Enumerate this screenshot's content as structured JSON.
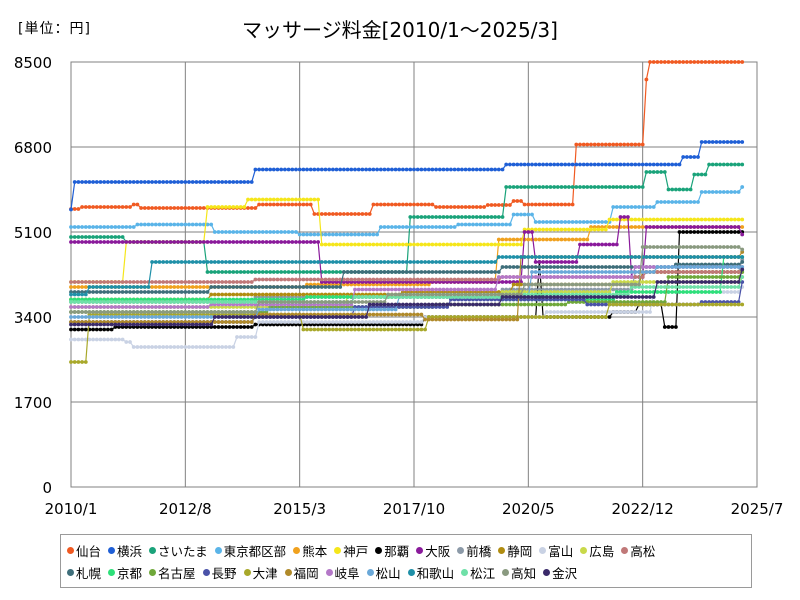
{
  "unit_label": "[単位：円]",
  "chart_data": {
    "type": "line",
    "title": "マッサージ料金[2010/1～2025/3]",
    "xlabel": "",
    "ylabel": "",
    "x_range": [
      "2010/1",
      "2025/7"
    ],
    "ylim": [
      0,
      8500
    ],
    "y_ticks": [
      "0",
      "1700",
      "3400",
      "5100",
      "6800",
      "8500"
    ],
    "x_ticks": [
      "2010/1",
      "2012/8",
      "2015/3",
      "2017/10",
      "2020/5",
      "2022/12",
      "2025/7"
    ],
    "grid": true,
    "legend_position": "bottom",
    "series": [
      {
        "name": "仙台",
        "color": "#f05a22",
        "points": [
          [
            "2010/1",
            5560
          ],
          [
            "2010/4",
            5600
          ],
          [
            "2011/6",
            5650
          ],
          [
            "2011/8",
            5580
          ],
          [
            "2014/4",
            5650
          ],
          [
            "2015/7",
            5460
          ],
          [
            "2016/11",
            5650
          ],
          [
            "2018/4",
            5600
          ],
          [
            "2019/6",
            5640
          ],
          [
            "2020/1",
            5720
          ],
          [
            "2020/4",
            5650
          ],
          [
            "2021/6",
            6850
          ],
          [
            "2022/12",
            6850
          ],
          [
            "2023/1",
            8150
          ],
          [
            "2023/2",
            8500
          ],
          [
            "2025/3",
            8500
          ]
        ]
      },
      {
        "name": "横浜",
        "color": "#1f5fd6",
        "points": [
          [
            "2010/1",
            5550
          ],
          [
            "2010/2",
            6100
          ],
          [
            "2014/2",
            6100
          ],
          [
            "2014/3",
            6350
          ],
          [
            "2019/10",
            6350
          ],
          [
            "2019/11",
            6450
          ],
          [
            "2023/9",
            6450
          ],
          [
            "2023/11",
            6600
          ],
          [
            "2024/4",
            6900
          ],
          [
            "2025/3",
            6900
          ]
        ]
      },
      {
        "name": "さいたま",
        "color": "#1aa37a",
        "points": [
          [
            "2010/1",
            5000
          ],
          [
            "2011/3",
            5000
          ],
          [
            "2011/4",
            4900
          ],
          [
            "2012/11",
            4900
          ],
          [
            "2013/2",
            4300
          ],
          [
            "2017/8",
            4300
          ],
          [
            "2017/9",
            5400
          ],
          [
            "2019/10",
            5400
          ],
          [
            "2019/11",
            6000
          ],
          [
            "2022/12",
            6000
          ],
          [
            "2023/1",
            6300
          ],
          [
            "2023/7",
            5950
          ],
          [
            "2024/2",
            6250
          ],
          [
            "2024/6",
            6450
          ],
          [
            "2025/3",
            6450
          ]
        ]
      },
      {
        "name": "東京都区部",
        "color": "#5ab4e8",
        "points": [
          [
            "2010/1",
            5200
          ],
          [
            "2011/5",
            5200
          ],
          [
            "2011/7",
            5250
          ],
          [
            "2013/4",
            5100
          ],
          [
            "2015/3",
            5050
          ],
          [
            "2017/1",
            5200
          ],
          [
            "2018/10",
            5250
          ],
          [
            "2020/1",
            5450
          ],
          [
            "2020/7",
            5300
          ],
          [
            "2022/4",
            5600
          ],
          [
            "2023/4",
            5700
          ],
          [
            "2024/4",
            5900
          ],
          [
            "2025/3",
            6000
          ]
        ]
      },
      {
        "name": "熊本",
        "color": "#f0a11e",
        "points": [
          [
            "2010/1",
            4000
          ],
          [
            "2014/4",
            4000
          ],
          [
            "2015/5",
            4050
          ],
          [
            "2018/3",
            4100
          ],
          [
            "2019/9",
            4950
          ],
          [
            "2021/10",
            5200
          ],
          [
            "2025/3",
            5200
          ]
        ]
      },
      {
        "name": "神戸",
        "color": "#f5e61a",
        "points": [
          [
            "2010/1",
            4100
          ],
          [
            "2011/2",
            4100
          ],
          [
            "2011/4",
            4900
          ],
          [
            "2013/2",
            5600
          ],
          [
            "2014/1",
            5750
          ],
          [
            "2015/7",
            5750
          ],
          [
            "2015/9",
            4850
          ],
          [
            "2019/9",
            4850
          ],
          [
            "2020/4",
            5150
          ],
          [
            "2022/3",
            5350
          ],
          [
            "2025/3",
            5350
          ]
        ]
      },
      {
        "name": "那覇",
        "color": "#000000",
        "points": [
          [
            "2010/1",
            3150
          ],
          [
            "2011/1",
            3200
          ],
          [
            "2014/3",
            3250
          ],
          [
            "2018/1",
            3400
          ],
          [
            "2020/7",
            3400
          ],
          [
            "2020/8",
            4500
          ],
          [
            "2020/9",
            3400
          ],
          [
            "2022/4",
            3500
          ],
          [
            "2022/11",
            3650
          ],
          [
            "2023/6",
            3200
          ],
          [
            "2023/10",
            5100
          ],
          [
            "2025/3",
            5100
          ]
        ]
      },
      {
        "name": "大阪",
        "color": "#8a1a9b",
        "points": [
          [
            "2010/1",
            4900
          ],
          [
            "2015/7",
            4900
          ],
          [
            "2015/9",
            4100
          ],
          [
            "2020/3",
            4100
          ],
          [
            "2020/4",
            5100
          ],
          [
            "2020/7",
            4500
          ],
          [
            "2021/7",
            4850
          ],
          [
            "2022/6",
            5400
          ],
          [
            "2022/9",
            4200
          ],
          [
            "2023/1",
            5200
          ],
          [
            "2024/8",
            5200
          ],
          [
            "2025/3",
            5050
          ]
        ]
      },
      {
        "name": "前橋",
        "color": "#8c9aa8",
        "points": [
          [
            "2010/1",
            3700
          ],
          [
            "2014/3",
            3800
          ],
          [
            "2019/10",
            3950
          ],
          [
            "2022/10",
            4300
          ],
          [
            "2025/3",
            4550
          ]
        ]
      },
      {
        "name": "静岡",
        "color": "#b08c10",
        "points": [
          [
            "2010/1",
            3750
          ],
          [
            "2013/3",
            3850
          ],
          [
            "2017/7",
            3900
          ],
          [
            "2020/1",
            4050
          ],
          [
            "2022/12",
            4300
          ],
          [
            "2025/3",
            4300
          ]
        ]
      },
      {
        "name": "富山",
        "color": "#c9d2e4",
        "points": [
          [
            "2010/1",
            2950
          ],
          [
            "2011/4",
            2900
          ],
          [
            "2011/6",
            2800
          ],
          [
            "2013/8",
            2800
          ],
          [
            "2013/10",
            3000
          ],
          [
            "2014/4",
            3300
          ],
          [
            "2018/1",
            3400
          ],
          [
            "2020/10",
            3500
          ],
          [
            "2023/3",
            3900
          ],
          [
            "2025/3",
            4000
          ]
        ]
      },
      {
        "name": "広島",
        "color": "#c9d94a",
        "points": [
          [
            "2010/1",
            3600
          ],
          [
            "2015/4",
            3600
          ],
          [
            "2016/4",
            3800
          ],
          [
            "2019/10",
            3900
          ],
          [
            "2022/4",
            4100
          ],
          [
            "2025/3",
            4200
          ]
        ]
      },
      {
        "name": "高松",
        "color": "#c07878",
        "points": [
          [
            "2010/1",
            4100
          ],
          [
            "2014/3",
            4150
          ],
          [
            "2019/10",
            4200
          ],
          [
            "2023/1",
            4300
          ],
          [
            "2025/3",
            4350
          ]
        ]
      },
      {
        "name": "札幌",
        "color": "#3e6e7a",
        "points": [
          [
            "2010/1",
            3900
          ],
          [
            "2013/3",
            4000
          ],
          [
            "2016/3",
            4300
          ],
          [
            "2019/10",
            4400
          ],
          [
            "2023/9",
            4450
          ],
          [
            "2025/3",
            4500
          ]
        ]
      },
      {
        "name": "京都",
        "color": "#2ee07a",
        "points": [
          [
            "2010/1",
            3750
          ],
          [
            "2015/5",
            3800
          ],
          [
            "2019/10",
            3750
          ],
          [
            "2022/5",
            3900
          ],
          [
            "2024/10",
            4600
          ],
          [
            "2025/3",
            4600
          ]
        ]
      },
      {
        "name": "名古屋",
        "color": "#6fa83a",
        "points": [
          [
            "2010/1",
            3500
          ],
          [
            "2014/7",
            3600
          ],
          [
            "2018/4",
            3650
          ],
          [
            "2021/4",
            3700
          ],
          [
            "2023/7",
            4200
          ],
          [
            "2025/3",
            4300
          ]
        ]
      },
      {
        "name": "長野",
        "color": "#4a52a8",
        "points": [
          [
            "2010/1",
            3300
          ],
          [
            "2014/3",
            3400
          ],
          [
            "2016/6",
            3600
          ],
          [
            "2018/8",
            3750
          ],
          [
            "2021/9",
            3650
          ],
          [
            "2024/4",
            3700
          ],
          [
            "2025/3",
            4100
          ]
        ]
      },
      {
        "name": "大津",
        "color": "#a8a82a",
        "points": [
          [
            "2010/1",
            2500
          ],
          [
            "2010/5",
            2500
          ],
          [
            "2010/6",
            3450
          ],
          [
            "2015/4",
            3150
          ],
          [
            "2017/10",
            3150
          ],
          [
            "2018/2",
            3400
          ],
          [
            "2022/3",
            3650
          ],
          [
            "2025/3",
            3650
          ]
        ]
      },
      {
        "name": "福岡",
        "color": "#b08a2a",
        "points": [
          [
            "2010/1",
            3300
          ],
          [
            "2014/3",
            3450
          ],
          [
            "2018/1",
            3350
          ],
          [
            "2020/3",
            4600
          ],
          [
            "2025/3",
            4700
          ]
        ]
      },
      {
        "name": "岐阜",
        "color": "#b478c8",
        "points": [
          [
            "2010/1",
            3600
          ],
          [
            "2013/3",
            3650
          ],
          [
            "2016/6",
            3950
          ],
          [
            "2019/9",
            4200
          ],
          [
            "2022/10",
            4400
          ],
          [
            "2025/3",
            4400
          ]
        ]
      },
      {
        "name": "松山",
        "color": "#6aa8d8",
        "points": [
          [
            "2010/1",
            3400
          ],
          [
            "2014/4",
            3550
          ],
          [
            "2017/6",
            3800
          ],
          [
            "2020/6",
            4300
          ],
          [
            "2023/4",
            4400
          ],
          [
            "2025/3",
            4400
          ]
        ]
      },
      {
        "name": "和歌山",
        "color": "#1f90a8",
        "points": [
          [
            "2010/1",
            3850
          ],
          [
            "2010/6",
            4000
          ],
          [
            "2011/10",
            4000
          ],
          [
            "2011/11",
            4500
          ],
          [
            "2017/3",
            4500
          ],
          [
            "2019/9",
            4600
          ],
          [
            "2025/3",
            4600
          ]
        ]
      },
      {
        "name": "松江",
        "color": "#6fe0a8",
        "points": [
          [
            "2010/1",
            3700
          ],
          [
            "2013/5",
            3700
          ],
          [
            "2016/6",
            3800
          ],
          [
            "2019/11",
            3850
          ],
          [
            "2022/9",
            4000
          ],
          [
            "2025/3",
            4200
          ]
        ]
      },
      {
        "name": "高知",
        "color": "#8a9a80",
        "points": [
          [
            "2010/1",
            3500
          ],
          [
            "2014/4",
            3700
          ],
          [
            "2017/3",
            3850
          ],
          [
            "2020/4",
            4050
          ],
          [
            "2022/12",
            4800
          ],
          [
            "2025/3",
            4750
          ]
        ]
      },
      {
        "name": "金沢",
        "color": "#3a2a6a",
        "points": [
          [
            "2010/1",
            3250
          ],
          [
            "2013/4",
            3400
          ],
          [
            "2016/10",
            3650
          ],
          [
            "2019/10",
            3800
          ],
          [
            "2023/4",
            4100
          ],
          [
            "2025/3",
            4350
          ]
        ]
      }
    ]
  }
}
